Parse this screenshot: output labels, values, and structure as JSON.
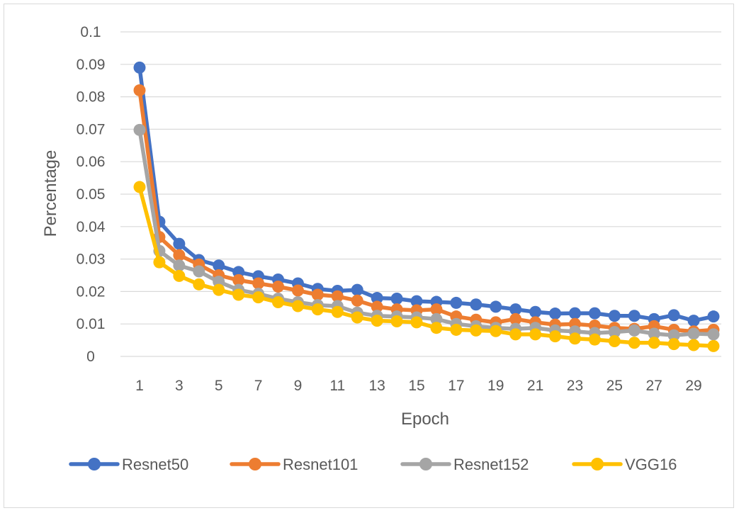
{
  "chart_data": {
    "type": "line",
    "title": "",
    "xlabel": "Epoch",
    "ylabel": "Percentage",
    "x": [
      1,
      2,
      3,
      4,
      5,
      6,
      7,
      8,
      9,
      10,
      11,
      12,
      13,
      14,
      15,
      16,
      17,
      18,
      19,
      20,
      21,
      22,
      23,
      24,
      25,
      26,
      27,
      28,
      29,
      30
    ],
    "x_tick_labels": [
      "1",
      "3",
      "5",
      "7",
      "9",
      "11",
      "13",
      "15",
      "17",
      "19",
      "21",
      "23",
      "25",
      "27",
      "29"
    ],
    "y_tick_labels": [
      "0",
      "0.01",
      "0.02",
      "0.03",
      "0.04",
      "0.05",
      "0.06",
      "0.07",
      "0.08",
      "0.09",
      "0.1"
    ],
    "ylim": [
      0,
      0.1
    ],
    "grid": "horizontal",
    "legend_position": "bottom",
    "series": [
      {
        "name": "Resnet50",
        "color": "#4472c4",
        "values": [
          0.089,
          0.0415,
          0.0347,
          0.0297,
          0.028,
          0.026,
          0.0247,
          0.0237,
          0.0225,
          0.0208,
          0.0202,
          0.0205,
          0.018,
          0.0178,
          0.017,
          0.0168,
          0.0165,
          0.016,
          0.0153,
          0.0145,
          0.0137,
          0.0132,
          0.0133,
          0.0133,
          0.0125,
          0.0125,
          0.0115,
          0.0127,
          0.011,
          0.0123
        ]
      },
      {
        "name": "Resnet101",
        "color": "#ed7d31",
        "values": [
          0.082,
          0.0368,
          0.0312,
          0.0283,
          0.025,
          0.0235,
          0.0225,
          0.0215,
          0.0203,
          0.019,
          0.0185,
          0.0172,
          0.0153,
          0.0145,
          0.0142,
          0.0145,
          0.0123,
          0.0113,
          0.0105,
          0.0115,
          0.0105,
          0.0098,
          0.01,
          0.0095,
          0.0088,
          0.0085,
          0.0093,
          0.0082,
          0.0077,
          0.0082
        ]
      },
      {
        "name": "Resnet152",
        "color": "#a5a5a5",
        "values": [
          0.0698,
          0.0325,
          0.028,
          0.0262,
          0.023,
          0.0205,
          0.0193,
          0.0178,
          0.0167,
          0.0158,
          0.0155,
          0.0135,
          0.0125,
          0.0123,
          0.012,
          0.0115,
          0.01,
          0.0093,
          0.0088,
          0.0085,
          0.0088,
          0.008,
          0.0077,
          0.0072,
          0.0075,
          0.008,
          0.007,
          0.0065,
          0.007,
          0.0068
        ]
      },
      {
        "name": "VGG16",
        "color": "#ffc000",
        "values": [
          0.0522,
          0.029,
          0.0248,
          0.0222,
          0.0205,
          0.019,
          0.0182,
          0.0167,
          0.0155,
          0.0145,
          0.0137,
          0.012,
          0.011,
          0.0108,
          0.0105,
          0.0088,
          0.0082,
          0.008,
          0.0078,
          0.0068,
          0.0068,
          0.0062,
          0.0055,
          0.0052,
          0.0047,
          0.0042,
          0.0042,
          0.0038,
          0.0035,
          0.0032
        ]
      }
    ]
  }
}
